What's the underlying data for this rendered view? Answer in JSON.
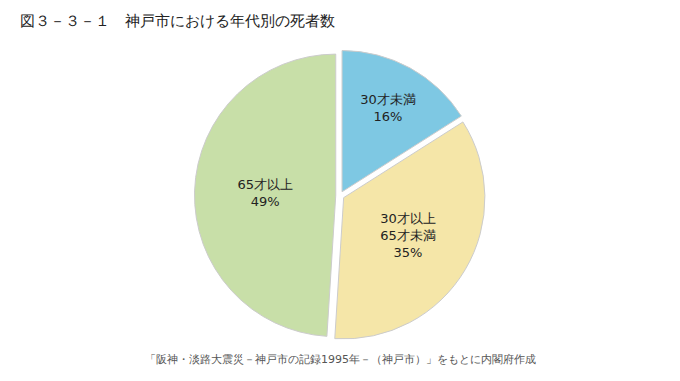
{
  "chart_data": {
    "type": "pie",
    "title": "図３－３－１　神戸市における年代別の死者数",
    "categories": [
      "30才未満",
      "30才以上\n65才未満",
      "65才以上"
    ],
    "values": [
      16,
      35,
      49
    ],
    "value_labels": [
      "16%",
      "35%",
      "49%"
    ],
    "colors": [
      "#7EC8E3",
      "#F5E6A8",
      "#C8DFA8"
    ],
    "data_labels": true,
    "annotations": [
      "「阪神・淡路大震災－神戸市の記録1995年－（神戸市）」をもとに内閣府作成"
    ]
  }
}
